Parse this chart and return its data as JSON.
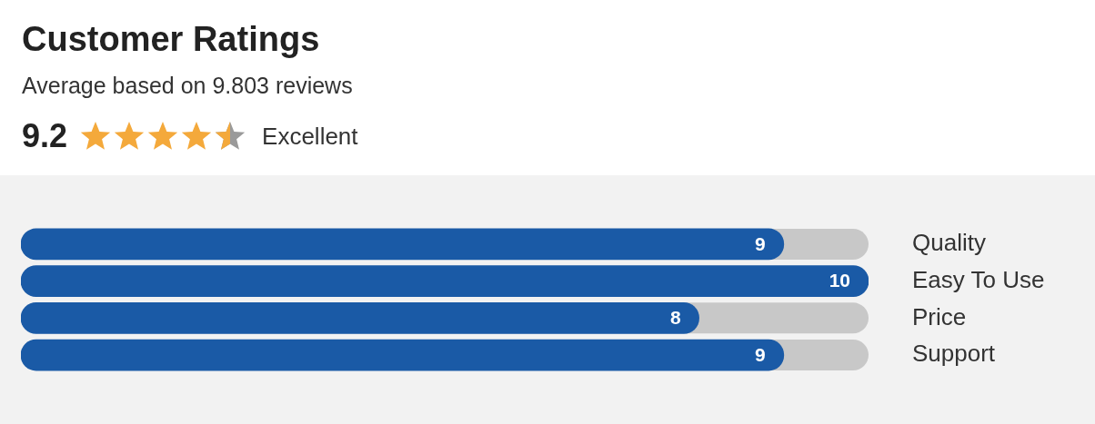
{
  "chart_data": {
    "type": "bar",
    "orientation": "horizontal",
    "title": "Customer Ratings",
    "subtitle": "Average based on 9.803 reviews",
    "annotations": [
      "9.2",
      "Excellent"
    ],
    "categories": [
      "Quality",
      "Easy To Use",
      "Price",
      "Support"
    ],
    "values": [
      9,
      10,
      8,
      9
    ],
    "color": "#1a5aa6",
    "xlim": [
      0,
      10
    ],
    "tick_labels": "y",
    "data_labels": true
  }
}
